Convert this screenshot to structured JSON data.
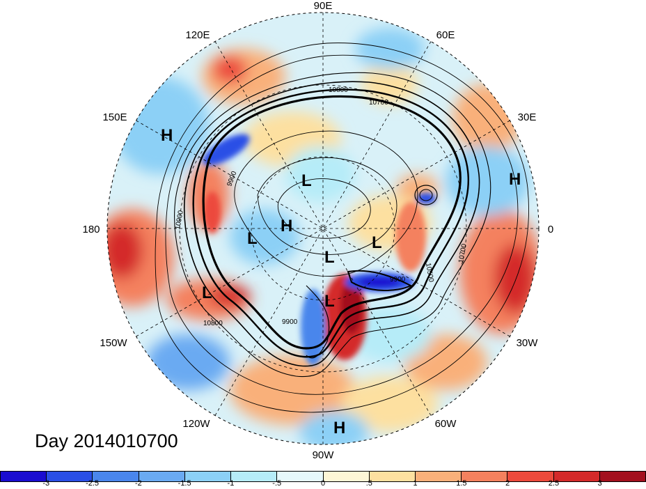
{
  "title": "Day 2014010700",
  "map": {
    "projection": "north-polar-stereographic",
    "longitude_labels": {
      "east90": "90E",
      "east60": "60E",
      "east30": "30E",
      "zero": "0",
      "west30": "30W",
      "west60": "60W",
      "west90": "90W",
      "west120": "120W",
      "west150": "150W",
      "dateline": "180",
      "east150": "150E",
      "east120": "120E"
    },
    "pressure_centers": [
      {
        "name": "high-pressure-marker",
        "letter": "H",
        "region": "east-siberia"
      },
      {
        "name": "high-pressure-marker",
        "letter": "H",
        "region": "europe"
      },
      {
        "name": "high-pressure-marker",
        "letter": "H",
        "region": "arctic-alaska"
      },
      {
        "name": "high-pressure-marker",
        "letter": "H",
        "region": "central-america"
      },
      {
        "name": "low-pressure-marker",
        "letter": "L",
        "region": "siberia"
      },
      {
        "name": "low-pressure-marker",
        "letter": "L",
        "region": "alaska"
      },
      {
        "name": "low-pressure-marker",
        "letter": "L",
        "region": "north-pole"
      },
      {
        "name": "low-pressure-marker",
        "letter": "L",
        "region": "greenland"
      },
      {
        "name": "low-pressure-marker",
        "letter": "L",
        "region": "hudson-bay"
      },
      {
        "name": "low-pressure-marker",
        "letter": "L",
        "region": "north-pacific"
      }
    ],
    "contour_labels": [
      "10800",
      "10700",
      "9900",
      "9900",
      "10500",
      "10700",
      "10900",
      "10800",
      "9900"
    ]
  },
  "colorbar": {
    "colors": [
      "#1a0dd0",
      "#2a4fe6",
      "#4a86ec",
      "#6aaaf2",
      "#8cd0f6",
      "#b6ecf8",
      "#e6f8fb",
      "#fdf6d6",
      "#fde0a0",
      "#f9b07a",
      "#f4815e",
      "#ec4a3c",
      "#d42a2a",
      "#a3101e"
    ],
    "labels": [
      "-3",
      "-2.5",
      "-2",
      "-1.5",
      "-1",
      "-.5",
      "0",
      ".5",
      "1",
      "1.5",
      "2",
      "2.5",
      "3"
    ]
  }
}
